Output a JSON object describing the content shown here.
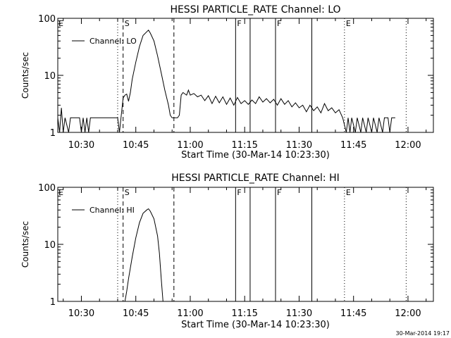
{
  "chart_data": [
    {
      "type": "line",
      "title": "HESSI PARTICLE_RATE Channel: LO",
      "xlabel": "Start Time (30-Mar-14 10:23:30)",
      "ylabel": "Counts/sec",
      "y_scale": "log",
      "ylim": [
        1,
        100
      ],
      "y_ticks": [
        {
          "value": 1,
          "label": "1"
        },
        {
          "value": 10,
          "label": "10"
        },
        {
          "value": 100,
          "label": "100"
        }
      ],
      "xlim": [
        "10:23:30",
        "12:07:00"
      ],
      "x_ticks": [
        {
          "value": "10:30",
          "label": "10:30"
        },
        {
          "value": "10:45",
          "label": "10:45"
        },
        {
          "value": "11:00",
          "label": "11:00"
        },
        {
          "value": "11:15",
          "label": "11:15"
        },
        {
          "value": "11:30",
          "label": "11:30"
        },
        {
          "value": "11:45",
          "label": "11:45"
        },
        {
          "value": "12:00",
          "label": "12:00"
        }
      ],
      "legend": {
        "placement": "top-left",
        "entries": [
          "Channel: LO"
        ]
      },
      "series": [
        {
          "name": "Channel: LO",
          "points": [
            [
              "10:23:30",
              1.8
            ],
            [
              "10:24:00",
              1.0
            ],
            [
              "10:24:30",
              2.7
            ],
            [
              "10:25:00",
              1.0
            ],
            [
              "10:25:30",
              1.8
            ],
            [
              "10:26:30",
              1.0
            ],
            [
              "10:27:00",
              1.8
            ],
            [
              "10:29:30",
              1.8
            ],
            [
              "10:30:00",
              1.0
            ],
            [
              "10:30:30",
              1.8
            ],
            [
              "10:31:00",
              1.0
            ],
            [
              "10:31:30",
              1.8
            ],
            [
              "10:32:00",
              1.0
            ],
            [
              "10:32:30",
              1.8
            ],
            [
              "10:40:00",
              1.8
            ],
            [
              "10:40:30",
              1.0
            ],
            [
              "10:41:00",
              2.0
            ],
            [
              "10:41:30",
              4.0
            ],
            [
              "10:42:00",
              4.5
            ],
            [
              "10:42:30",
              4.7
            ],
            [
              "10:43:00",
              3.5
            ],
            [
              "10:43:30",
              5.0
            ],
            [
              "10:44:00",
              8.5
            ],
            [
              "10:45:00",
              17
            ],
            [
              "10:46:00",
              32
            ],
            [
              "10:47:00",
              50
            ],
            [
              "10:48:00",
              58
            ],
            [
              "10:48:30",
              62
            ],
            [
              "10:49:00",
              55
            ],
            [
              "10:50:00",
              40
            ],
            [
              "10:51:00",
              22
            ],
            [
              "10:52:00",
              11
            ],
            [
              "10:53:00",
              5.5
            ],
            [
              "10:54:00",
              3.0
            ],
            [
              "10:54:30",
              2.0
            ],
            [
              "10:55:00",
              1.8
            ],
            [
              "10:56:30",
              1.8
            ],
            [
              "10:57:00",
              2.0
            ],
            [
              "10:57:30",
              4.5
            ],
            [
              "10:58:00",
              5.0
            ],
            [
              "10:59:00",
              4.5
            ],
            [
              "10:59:30",
              5.5
            ],
            [
              "11:00:00",
              4.5
            ],
            [
              "11:01:00",
              4.8
            ],
            [
              "11:02:00",
              4.2
            ],
            [
              "11:03:00",
              4.5
            ],
            [
              "11:04:00",
              3.6
            ],
            [
              "11:05:00",
              4.4
            ],
            [
              "11:06:00",
              3.2
            ],
            [
              "11:07:00",
              4.3
            ],
            [
              "11:08:00",
              3.3
            ],
            [
              "11:09:00",
              4.2
            ],
            [
              "11:10:00",
              3.1
            ],
            [
              "11:11:00",
              4.0
            ],
            [
              "11:12:00",
              3.0
            ],
            [
              "11:13:00",
              4.1
            ],
            [
              "11:14:00",
              3.2
            ],
            [
              "11:15:00",
              3.6
            ],
            [
              "11:16:00",
              3.1
            ],
            [
              "11:17:00",
              3.7
            ],
            [
              "11:18:00",
              3.2
            ],
            [
              "11:19:00",
              4.2
            ],
            [
              "11:20:00",
              3.4
            ],
            [
              "11:21:00",
              3.9
            ],
            [
              "11:22:00",
              3.3
            ],
            [
              "11:23:00",
              3.8
            ],
            [
              "11:24:00",
              3.0
            ],
            [
              "11:25:00",
              3.9
            ],
            [
              "11:26:00",
              3.1
            ],
            [
              "11:27:00",
              3.6
            ],
            [
              "11:28:00",
              2.8
            ],
            [
              "11:29:00",
              3.3
            ],
            [
              "11:30:00",
              2.7
            ],
            [
              "11:31:00",
              3.0
            ],
            [
              "11:32:00",
              2.3
            ],
            [
              "11:33:00",
              3.0
            ],
            [
              "11:34:00",
              2.4
            ],
            [
              "11:35:00",
              2.8
            ],
            [
              "11:36:00",
              2.2
            ],
            [
              "11:37:00",
              3.2
            ],
            [
              "11:38:00",
              2.4
            ],
            [
              "11:39:00",
              2.7
            ],
            [
              "11:40:00",
              2.2
            ],
            [
              "11:41:00",
              2.5
            ],
            [
              "11:42:00",
              1.8
            ],
            [
              "11:43:00",
              1.0
            ],
            [
              "11:43:30",
              1.8
            ],
            [
              "11:44:00",
              1.0
            ],
            [
              "11:44:30",
              1.8
            ],
            [
              "11:45:30",
              1.0
            ],
            [
              "11:46:00",
              1.8
            ],
            [
              "11:47:00",
              1.0
            ],
            [
              "11:47:30",
              1.8
            ],
            [
              "11:48:30",
              1.0
            ],
            [
              "11:49:00",
              1.8
            ],
            [
              "11:50:00",
              1.0
            ],
            [
              "11:50:30",
              1.8
            ],
            [
              "11:51:30",
              1.0
            ],
            [
              "11:52:00",
              1.8
            ],
            [
              "11:53:00",
              1.0
            ],
            [
              "11:53:30",
              1.8
            ],
            [
              "11:54:30",
              1.8
            ],
            [
              "11:55:00",
              1.0
            ],
            [
              "11:55:30",
              1.8
            ],
            [
              "11:56:30",
              1.8
            ]
          ]
        }
      ],
      "event_markers": [
        {
          "time": "10:40:00",
          "style": "dotted",
          "label": ""
        },
        {
          "time": "10:41:30",
          "style": "dashed",
          "label": "S"
        },
        {
          "time": "10:55:30",
          "style": "dashed",
          "label": ""
        },
        {
          "time": "11:12:30",
          "style": "solid",
          "label": "F"
        },
        {
          "time": "11:16:30",
          "style": "solid",
          "label": ""
        },
        {
          "time": "11:23:30",
          "style": "solid",
          "label": "F"
        },
        {
          "time": "11:33:30",
          "style": "solid",
          "label": ""
        },
        {
          "time": "11:42:30",
          "style": "dotted",
          "label": "E"
        },
        {
          "time": "11:59:30",
          "style": "dotted",
          "label": ""
        }
      ],
      "corner_marker_label": "E"
    },
    {
      "type": "line",
      "title": "HESSI PARTICLE_RATE Channel: HI",
      "xlabel": "Start Time (30-Mar-14 10:23:30)",
      "ylabel": "Counts/sec",
      "y_scale": "log",
      "ylim": [
        1,
        100
      ],
      "y_ticks": [
        {
          "value": 1,
          "label": "1"
        },
        {
          "value": 10,
          "label": "10"
        },
        {
          "value": 100,
          "label": "100"
        }
      ],
      "xlim": [
        "10:23:30",
        "12:07:00"
      ],
      "x_ticks": [
        {
          "value": "10:30",
          "label": "10:30"
        },
        {
          "value": "10:45",
          "label": "10:45"
        },
        {
          "value": "11:00",
          "label": "11:00"
        },
        {
          "value": "11:15",
          "label": "11:15"
        },
        {
          "value": "11:30",
          "label": "11:30"
        },
        {
          "value": "11:45",
          "label": "11:45"
        },
        {
          "value": "12:00",
          "label": "12:00"
        }
      ],
      "legend": {
        "placement": "top-left",
        "entries": [
          "Channel: HI"
        ]
      },
      "series": [
        {
          "name": "Channel: HI",
          "points": [
            [
              "10:42:00",
              1.0
            ],
            [
              "10:42:30",
              1.5
            ],
            [
              "10:43:00",
              2.5
            ],
            [
              "10:44:00",
              6
            ],
            [
              "10:45:00",
              13
            ],
            [
              "10:46:00",
              24
            ],
            [
              "10:47:00",
              35
            ],
            [
              "10:48:00",
              40
            ],
            [
              "10:48:30",
              42
            ],
            [
              "10:49:00",
              38
            ],
            [
              "10:50:00",
              28
            ],
            [
              "10:51:00",
              14
            ],
            [
              "10:51:30",
              7
            ],
            [
              "10:52:00",
              2.5
            ],
            [
              "10:52:30",
              1.0
            ]
          ]
        }
      ],
      "event_markers": [
        {
          "time": "10:40:00",
          "style": "dotted",
          "label": ""
        },
        {
          "time": "10:41:30",
          "style": "dashed",
          "label": "S"
        },
        {
          "time": "10:55:30",
          "style": "dashed",
          "label": ""
        },
        {
          "time": "11:12:30",
          "style": "solid",
          "label": "F"
        },
        {
          "time": "11:16:30",
          "style": "solid",
          "label": ""
        },
        {
          "time": "11:23:30",
          "style": "solid",
          "label": "F"
        },
        {
          "time": "11:33:30",
          "style": "solid",
          "label": ""
        },
        {
          "time": "11:42:30",
          "style": "dotted",
          "label": "E"
        },
        {
          "time": "11:59:30",
          "style": "dotted",
          "label": ""
        }
      ],
      "corner_marker_label": "E"
    }
  ],
  "footer": {
    "timestamp": "30-Mar-2014 19:17"
  }
}
